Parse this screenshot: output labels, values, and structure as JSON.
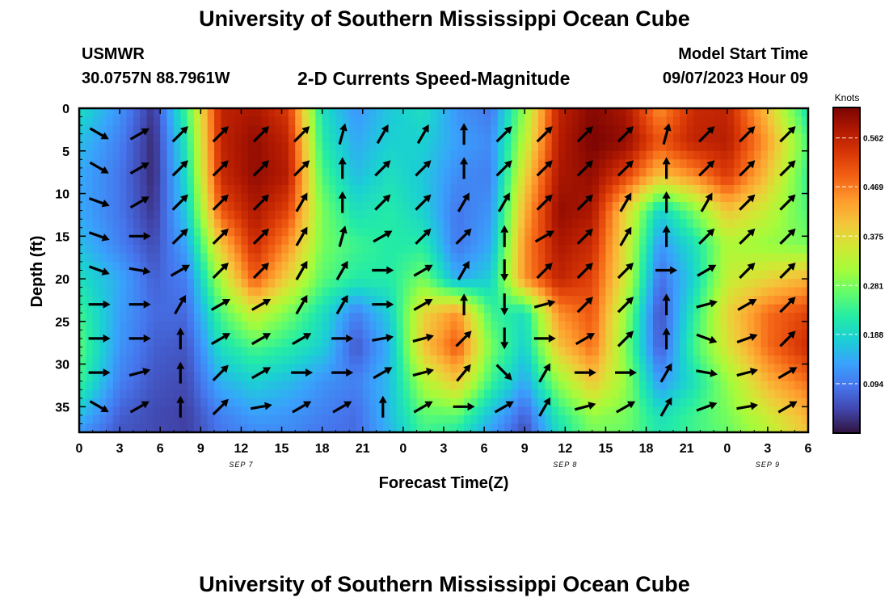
{
  "header": {
    "title": "University of Southern Mississippi Ocean Cube",
    "station": "USMWR",
    "latlon": "30.0757N  88.7961W",
    "subtitle": "2-D Currents Speed-Magnitude",
    "start_label": "Model Start Time",
    "start_value": "09/07/2023 Hour 09"
  },
  "footer": {
    "title": "University of Southern Mississippi Ocean Cube"
  },
  "chart_data": {
    "type": "heatmap",
    "xlabel": "Forecast Time(Z)",
    "ylabel": "Depth (ft)",
    "x_ticks": [
      "0",
      "3",
      "6",
      "9",
      "12",
      "15",
      "18",
      "21",
      "0",
      "3",
      "6",
      "9",
      "12",
      "15",
      "18",
      "21",
      "0",
      "3",
      "6"
    ],
    "date_labels": [
      {
        "label": "SEP 7",
        "x_index": 4
      },
      {
        "label": "SEP 8",
        "x_index": 12
      },
      {
        "label": "SEP 9",
        "x_index": 17
      }
    ],
    "y_ticks": [
      0,
      5,
      10,
      15,
      20,
      25,
      30,
      35
    ],
    "ylim": [
      0,
      38
    ],
    "colorbar": {
      "label": "Knots",
      "ticks": [
        "0.562",
        "0.469",
        "0.375",
        "0.281",
        "0.188",
        "0.094"
      ],
      "tick_values": [
        0.562,
        0.469,
        0.375,
        0.281,
        0.188,
        0.094
      ],
      "range": [
        0,
        0.62
      ],
      "colors": [
        "#30123b",
        "#4145ab",
        "#4675ed",
        "#39a2fc",
        "#1bcfd4",
        "#24eca6",
        "#61fc6c",
        "#a4fc3b",
        "#d1e834",
        "#f3c63a",
        "#fe9b2d",
        "#f36315",
        "#d93806",
        "#b11901",
        "#7a0403"
      ]
    },
    "speed_depths": [
      0,
      4,
      8,
      12,
      16,
      20,
      24,
      28,
      32,
      36,
      38
    ],
    "speed_times": [
      0,
      3,
      5.5,
      8,
      10.5,
      13,
      15.5,
      18,
      20.5,
      23,
      25.5,
      28,
      30.5,
      33,
      35.5,
      38,
      40.5,
      43,
      45.5,
      48,
      51,
      54
    ],
    "speed": [
      [
        0.2,
        0.12,
        0.03,
        0.25,
        0.56,
        0.58,
        0.53,
        0.2,
        0.12,
        0.17,
        0.2,
        0.12,
        0.09,
        0.3,
        0.56,
        0.61,
        0.58,
        0.45,
        0.55,
        0.56,
        0.4,
        0.2
      ],
      [
        0.16,
        0.1,
        0.02,
        0.22,
        0.56,
        0.6,
        0.56,
        0.22,
        0.14,
        0.18,
        0.18,
        0.13,
        0.11,
        0.33,
        0.57,
        0.62,
        0.6,
        0.5,
        0.56,
        0.57,
        0.44,
        0.25
      ],
      [
        0.14,
        0.09,
        0.02,
        0.2,
        0.55,
        0.6,
        0.57,
        0.25,
        0.16,
        0.2,
        0.17,
        0.11,
        0.1,
        0.38,
        0.58,
        0.6,
        0.52,
        0.4,
        0.45,
        0.53,
        0.4,
        0.23
      ],
      [
        0.14,
        0.09,
        0.03,
        0.18,
        0.5,
        0.58,
        0.52,
        0.28,
        0.2,
        0.22,
        0.18,
        0.09,
        0.12,
        0.42,
        0.6,
        0.58,
        0.38,
        0.18,
        0.28,
        0.4,
        0.34,
        0.25
      ],
      [
        0.16,
        0.1,
        0.05,
        0.14,
        0.4,
        0.55,
        0.45,
        0.28,
        0.24,
        0.22,
        0.22,
        0.09,
        0.14,
        0.45,
        0.58,
        0.55,
        0.36,
        0.12,
        0.2,
        0.32,
        0.3,
        0.28
      ],
      [
        0.2,
        0.14,
        0.07,
        0.1,
        0.32,
        0.5,
        0.38,
        0.26,
        0.22,
        0.22,
        0.28,
        0.14,
        0.18,
        0.45,
        0.56,
        0.52,
        0.35,
        0.08,
        0.18,
        0.34,
        0.38,
        0.42
      ],
      [
        0.24,
        0.13,
        0.08,
        0.08,
        0.25,
        0.35,
        0.28,
        0.2,
        0.1,
        0.18,
        0.38,
        0.45,
        0.24,
        0.2,
        0.45,
        0.5,
        0.3,
        0.05,
        0.22,
        0.38,
        0.48,
        0.52
      ],
      [
        0.26,
        0.12,
        0.07,
        0.06,
        0.2,
        0.25,
        0.22,
        0.18,
        0.06,
        0.15,
        0.4,
        0.5,
        0.28,
        0.18,
        0.4,
        0.48,
        0.28,
        0.06,
        0.24,
        0.36,
        0.48,
        0.55
      ],
      [
        0.24,
        0.1,
        0.06,
        0.05,
        0.15,
        0.18,
        0.16,
        0.12,
        0.1,
        0.16,
        0.32,
        0.4,
        0.24,
        0.14,
        0.3,
        0.4,
        0.3,
        0.12,
        0.2,
        0.3,
        0.42,
        0.48
      ],
      [
        0.16,
        0.07,
        0.05,
        0.04,
        0.1,
        0.13,
        0.12,
        0.1,
        0.08,
        0.16,
        0.26,
        0.26,
        0.16,
        0.07,
        0.22,
        0.3,
        0.28,
        0.2,
        0.24,
        0.28,
        0.35,
        0.42
      ],
      [
        0.12,
        0.06,
        0.05,
        0.04,
        0.09,
        0.11,
        0.11,
        0.09,
        0.08,
        0.15,
        0.24,
        0.22,
        0.13,
        0.05,
        0.2,
        0.28,
        0.27,
        0.21,
        0.24,
        0.27,
        0.33,
        0.4
      ]
    ],
    "arrow_times": [
      1.5,
      4.5,
      7.5,
      10.5,
      13.5,
      16.5,
      19.5,
      22.5,
      25.5,
      28.5,
      31.5,
      34.5,
      37.5,
      40.5,
      43.5,
      46.5,
      49.5,
      52.5
    ],
    "arrow_depths": [
      3,
      7,
      11,
      15,
      19,
      23,
      27,
      31,
      35
    ],
    "arrow_angles_deg": [
      [
        30,
        330,
        315,
        315,
        315,
        315,
        285,
        300,
        300,
        270,
        315,
        315,
        315,
        315,
        285,
        315,
        315,
        315
      ],
      [
        30,
        330,
        315,
        315,
        315,
        315,
        270,
        315,
        315,
        270,
        315,
        315,
        315,
        315,
        270,
        315,
        315,
        315
      ],
      [
        20,
        330,
        315,
        315,
        315,
        300,
        270,
        315,
        315,
        300,
        300,
        315,
        315,
        300,
        270,
        300,
        315,
        315
      ],
      [
        20,
        0,
        315,
        315,
        315,
        300,
        285,
        330,
        315,
        315,
        270,
        330,
        315,
        300,
        270,
        315,
        315,
        315
      ],
      [
        20,
        10,
        330,
        315,
        315,
        300,
        300,
        0,
        330,
        300,
        90,
        315,
        315,
        315,
        0,
        330,
        315,
        315
      ],
      [
        0,
        0,
        300,
        330,
        330,
        300,
        300,
        0,
        330,
        270,
        90,
        345,
        315,
        315,
        270,
        345,
        330,
        315
      ],
      [
        0,
        0,
        270,
        330,
        330,
        330,
        0,
        350,
        345,
        315,
        90,
        0,
        330,
        315,
        270,
        20,
        340,
        315
      ],
      [
        0,
        345,
        270,
        315,
        330,
        0,
        0,
        330,
        345,
        310,
        45,
        300,
        0,
        0,
        300,
        10,
        345,
        330
      ],
      [
        30,
        330,
        270,
        315,
        350,
        330,
        330,
        270,
        330,
        0,
        330,
        300,
        345,
        330,
        300,
        340,
        350,
        330
      ]
    ]
  }
}
